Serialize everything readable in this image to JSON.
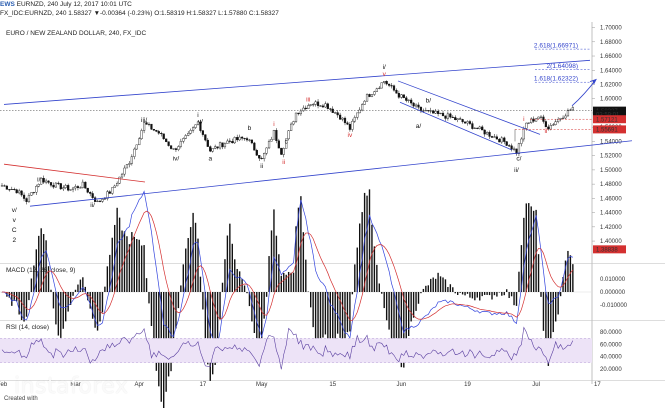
{
  "header": {
    "brand": "EWS",
    "line1": "EURNZD, 240  July 12, 2017 10:01 UTC",
    "line2": "FX_IDC:EURNZD, 240  1.58327  ▼-0.00364 (-0.23%)  O:1.58319 H:1.58327 L:1.57880 C:1.58327",
    "title": "EURO / NEW ZEALAND DOLLAR, 240, FX_IDC"
  },
  "colors": {
    "up": "#111111",
    "channel": "#3344cc",
    "resist": "#d43030",
    "wave": "#d43030",
    "macd": "#3344dd",
    "signal": "#d43030",
    "rsi": "#5a3fa0",
    "rsi_band": "#ede3f7",
    "axis": "#333333"
  },
  "chart_data": [
    {
      "type": "candlestick",
      "title": "EURO / NEW ZEALAND DOLLAR, 240, FX_IDC",
      "ylim": [
        1.372,
        1.705
      ],
      "y_ticks": [
        "1.70000",
        "1.68000",
        "1.66000",
        "1.64000",
        "1.62000",
        "1.60000",
        "1.58000",
        "1.56000",
        "1.54000",
        "1.52000",
        "1.50000",
        "1.48000",
        "1.46000",
        "1.44000",
        "1.42000",
        "1.40000"
      ],
      "x_ticks": [
        "Feb",
        "Mar",
        "Apr",
        "17",
        "May",
        "15",
        "Jun",
        "19",
        "Jul",
        "17"
      ],
      "price_tags": [
        {
          "text": "1.58327",
          "value": 1.58327,
          "color": "#111111"
        },
        {
          "text": "03:59:01",
          "value": 1.5782,
          "color": "#111111"
        },
        {
          "text": "1.57121",
          "value": 1.57121,
          "color": "#d43030"
        },
        {
          "text": "1.55691",
          "value": 1.55691,
          "color": "#d43030"
        },
        {
          "text": "1.38838",
          "value": 1.38838,
          "color": "#d43030"
        }
      ],
      "fib_levels": [
        {
          "text": "2.618(1.66971)",
          "value": 1.66971
        },
        {
          "text": "2(1.64098)",
          "value": 1.64098
        },
        {
          "text": "1.618(1.62322)",
          "value": 1.62322
        }
      ],
      "waves": [
        {
          "t": "v/",
          "x": 5,
          "y": 1.441,
          "c": "k"
        },
        {
          "t": "v",
          "x": 5,
          "y": 1.427,
          "c": "k"
        },
        {
          "t": "C",
          "x": 5,
          "y": 1.413,
          "c": "k"
        },
        {
          "t": "2",
          "x": 5,
          "y": 1.399,
          "c": "k"
        },
        {
          "t": "i/",
          "x": 15,
          "y": 1.484,
          "c": "k"
        },
        {
          "t": "ii/",
          "x": 37,
          "y": 1.448,
          "c": "k"
        },
        {
          "t": "iii/",
          "x": 58,
          "y": 1.567,
          "c": "k"
        },
        {
          "t": "iv/",
          "x": 71,
          "y": 1.513,
          "c": "k"
        },
        {
          "t": "i",
          "x": 80,
          "y": 1.574,
          "c": "k"
        },
        {
          "t": "v/",
          "x": 81,
          "y": 1.565,
          "c": "k"
        },
        {
          "t": "a",
          "x": 85,
          "y": 1.513,
          "c": "k"
        },
        {
          "t": "b",
          "x": 101,
          "y": 1.556,
          "c": "k"
        },
        {
          "t": "c",
          "x": 116,
          "y": 1.537,
          "c": "k"
        },
        {
          "t": "i",
          "x": 111,
          "y": 1.562,
          "c": "r"
        },
        {
          "t": "ii",
          "x": 106,
          "y": 1.503,
          "c": "k"
        },
        {
          "t": "ii",
          "x": 115,
          "y": 1.508,
          "c": "r"
        },
        {
          "t": "iii",
          "x": 125,
          "y": 1.596,
          "c": "r"
        },
        {
          "t": "iv",
          "x": 142,
          "y": 1.546,
          "c": "r"
        },
        {
          "t": "i/",
          "x": 156,
          "y": 1.642,
          "c": "k"
        },
        {
          "t": "v",
          "x": 156,
          "y": 1.632,
          "c": "r"
        },
        {
          "t": "b/",
          "x": 174,
          "y": 1.595,
          "c": "k"
        },
        {
          "t": "a/",
          "x": 170,
          "y": 1.559,
          "c": "k"
        },
        {
          "t": "c/",
          "x": 211,
          "y": 1.513,
          "c": "k"
        },
        {
          "t": "ii/",
          "x": 210,
          "y": 1.497,
          "c": "k"
        },
        {
          "t": "i",
          "x": 213,
          "y": 1.569,
          "c": "r"
        },
        {
          "t": "ii",
          "x": 222,
          "y": 1.552,
          "c": "r"
        }
      ]
    },
    {
      "type": "line",
      "title": "MACD (12, 26, close, 9)",
      "ylim": [
        -0.02,
        0.02
      ],
      "y_ticks": [
        "0.010000",
        "0.000000",
        "-0.010000"
      ],
      "series": [
        {
          "name": "MACD"
        },
        {
          "name": "Signal"
        }
      ]
    },
    {
      "type": "line",
      "title": "RSI (14, close)",
      "ylim": [
        5,
        95
      ],
      "y_ticks": [
        "80.0000",
        "60.0000",
        "40.0000",
        "20.0000"
      ],
      "band": [
        30,
        70
      ],
      "series": [
        {
          "name": "RSI"
        }
      ]
    }
  ],
  "watermark": "instaforex",
  "footer": "Created with"
}
